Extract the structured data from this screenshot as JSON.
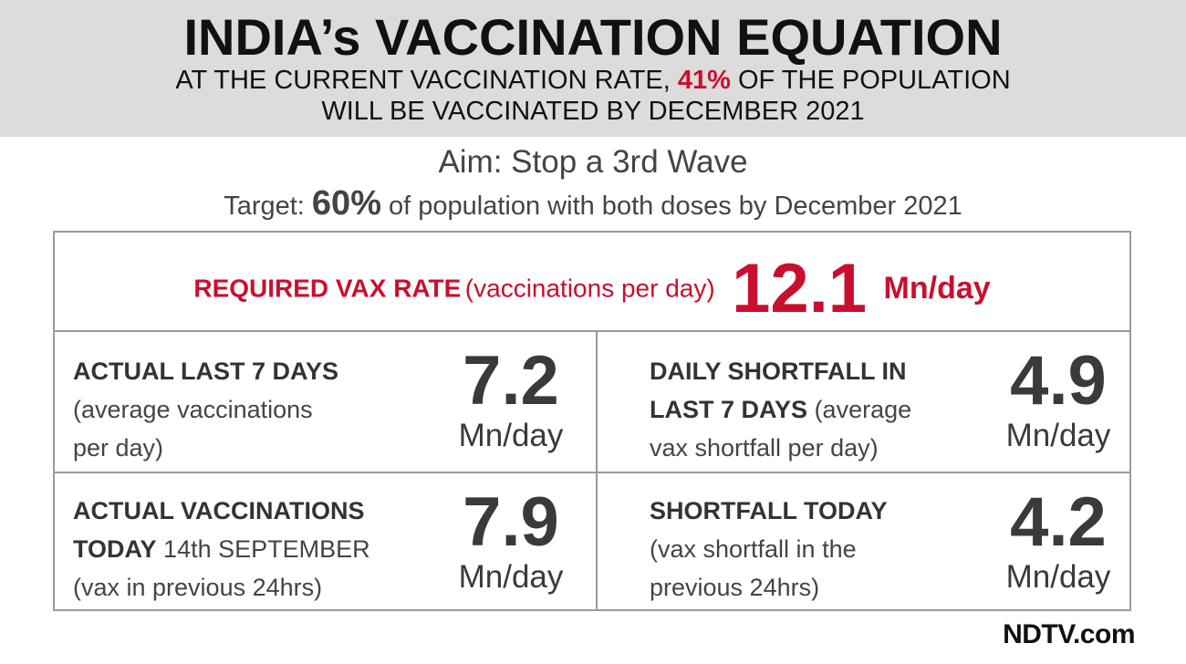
{
  "header": {
    "title": "INDIA’s VACCINATION EQUATION",
    "line1_pre": "AT THE CURRENT VACCINATION RATE, ",
    "line1_pct": "41%",
    "line1_post": " OF THE POPULATION",
    "line2": "WILL BE VACCINATED BY DECEMBER 2021"
  },
  "aim": "Aim: Stop a 3rd Wave",
  "target": {
    "pre": "Target: ",
    "pct": "60%",
    "post": " of population with both doses by December 2021"
  },
  "required": {
    "label": "REQUIRED VAX RATE",
    "paren": "(vaccinations per day)",
    "value": "12.1",
    "unit": "Mn/day"
  },
  "cells": {
    "last7": {
      "heading": "ACTUAL LAST 7 DAYS",
      "line2": "(average vaccinations",
      "line3": "per day)",
      "value": "7.2",
      "unit": "Mn/day"
    },
    "shortfall7": {
      "heading1": "DAILY SHORTFALL IN",
      "heading2": "LAST 7 DAYS",
      "line2_rest": " (average",
      "line3": "vax shortfall per day)",
      "value": "4.9",
      "unit": "Mn/day"
    },
    "today": {
      "heading1": "ACTUAL VACCINATIONS",
      "heading2": "TODAY",
      "line2_rest": " 14th SEPTEMBER",
      "line3": "(vax in previous 24hrs)",
      "value": "7.9",
      "unit": "Mn/day"
    },
    "shortfall_today": {
      "heading": "SHORTFALL TODAY",
      "line2": "(vax shortfall in the",
      "line3": "previous 24hrs)",
      "value": "4.2",
      "unit": "Mn/day"
    }
  },
  "logo": "NDTV.com",
  "colors": {
    "accent": "#c8102e",
    "header_bg": "#dcdcdc",
    "text": "#333333",
    "border": "#9a9a9a"
  }
}
